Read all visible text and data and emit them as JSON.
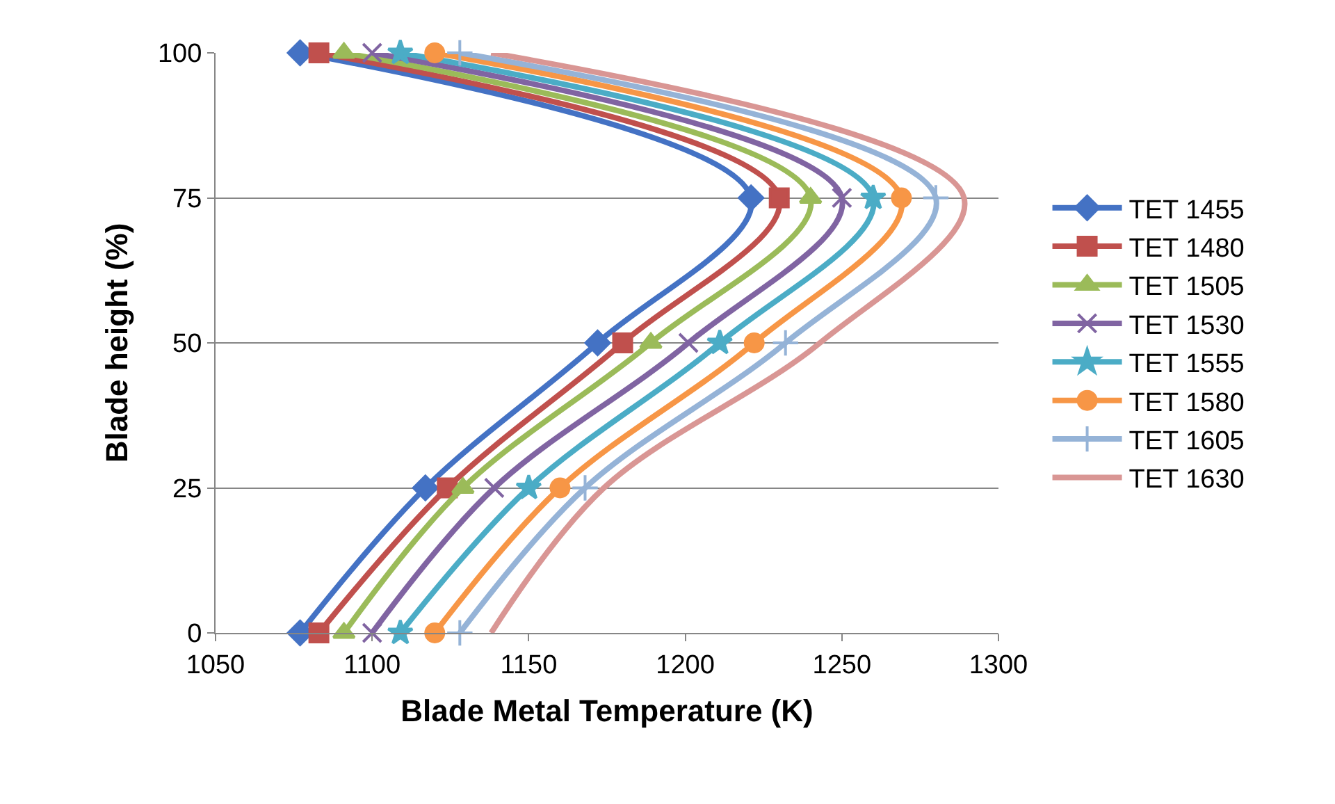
{
  "chart_data": {
    "type": "line",
    "xlabel": "Blade Metal Temperature (K)",
    "ylabel": "Blade height (%)",
    "xlim": [
      1050,
      1300
    ],
    "xticks": [
      1050,
      1100,
      1150,
      1200,
      1250,
      1300
    ],
    "ylim": [
      0,
      100
    ],
    "yticks": [
      0,
      25,
      50,
      75,
      100
    ],
    "grid": "y",
    "legend": "right",
    "line_style": "solid",
    "series": [
      {
        "name": "TET 1455",
        "color": "#4472c4",
        "marker": "diamond",
        "x": [
          1077,
          1117,
          1172,
          1221,
          1077
        ],
        "values": [
          0,
          25,
          50,
          75,
          100
        ]
      },
      {
        "name": "TET 1480",
        "color": "#c0504d",
        "marker": "square",
        "x": [
          1083,
          1124,
          1180,
          1230,
          1083
        ],
        "values": [
          0,
          25,
          50,
          75,
          100
        ]
      },
      {
        "name": "TET 1505",
        "color": "#9bbb59",
        "marker": "triangle",
        "x": [
          1091,
          1129,
          1189,
          1240,
          1091
        ],
        "values": [
          0,
          25,
          50,
          75,
          100
        ]
      },
      {
        "name": "TET 1530",
        "color": "#8064a2",
        "marker": "cross",
        "x": [
          1100,
          1139,
          1201,
          1250,
          1100
        ],
        "values": [
          0,
          25,
          50,
          75,
          100
        ]
      },
      {
        "name": "TET 1555",
        "color": "#4bacc6",
        "marker": "star",
        "x": [
          1109,
          1150,
          1211,
          1260,
          1109
        ],
        "values": [
          0,
          25,
          50,
          75,
          100
        ]
      },
      {
        "name": "TET 1580",
        "color": "#f79646",
        "marker": "circle",
        "x": [
          1120,
          1160,
          1222,
          1269,
          1120
        ],
        "values": [
          0,
          25,
          50,
          75,
          100
        ]
      },
      {
        "name": "TET 1605",
        "color": "#95b3d7",
        "marker": "cross",
        "x": [
          1128,
          1168,
          1232,
          1280,
          1128
        ],
        "values": [
          0,
          25,
          50,
          75,
          100
        ]
      },
      {
        "name": "TET 1630",
        "color": "#d99694",
        "marker": "none",
        "x": [
          1138,
          1174,
          1243,
          1289,
          1138
        ],
        "values": [
          0,
          25,
          50,
          75,
          100
        ]
      }
    ]
  }
}
